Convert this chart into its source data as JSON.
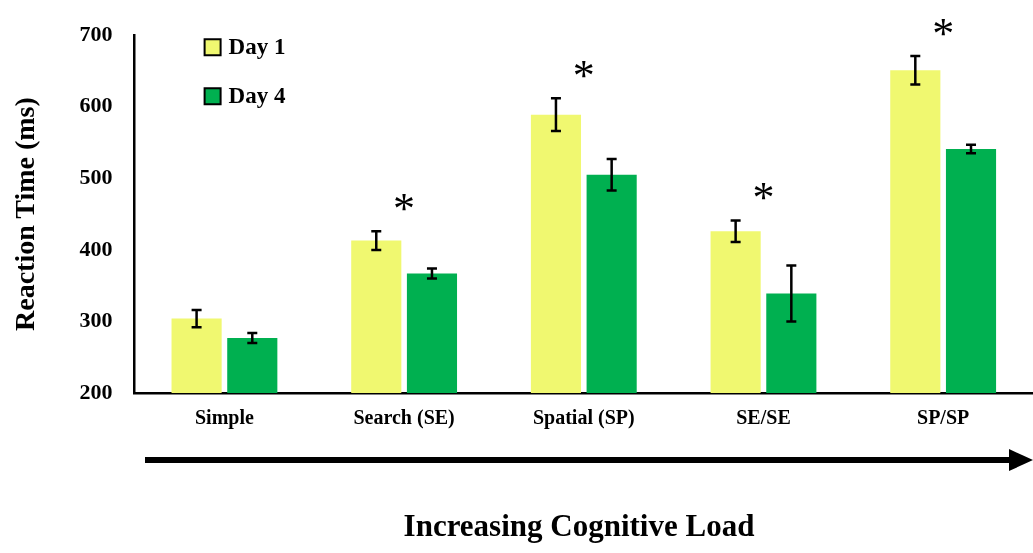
{
  "chart_data": {
    "type": "bar",
    "xlabel": "Increasing Cognitive Load",
    "ylabel": "Reaction Time (ms)",
    "categories": [
      "Simple",
      "Search (SE)",
      "Spatial (SP)",
      "SE/SE",
      "SP/SP"
    ],
    "series": [
      {
        "name": "Day 1",
        "color": "#f0f870",
        "values": [
          304,
          413,
          589,
          426,
          651
        ],
        "errors": [
          12,
          13,
          23,
          15,
          20
        ]
      },
      {
        "name": "Day 4",
        "color": "#00b050",
        "values": [
          277,
          367,
          505,
          339,
          541
        ],
        "errors": [
          7,
          7,
          22,
          39,
          6
        ]
      }
    ],
    "ylim": [
      200,
      700
    ],
    "yticks": [
      200,
      300,
      400,
      500,
      600,
      700
    ],
    "grid": false,
    "legend": "top left",
    "annotations": [
      {
        "text": "*",
        "x": "Search (SE)",
        "y": 413
      },
      {
        "text": "*",
        "x": "Spatial (SP)",
        "y": 589
      },
      {
        "text": "*",
        "x": "SE/SE",
        "y": 426
      },
      {
        "text": "*",
        "x": "SP/SP",
        "y": 651
      }
    ]
  }
}
